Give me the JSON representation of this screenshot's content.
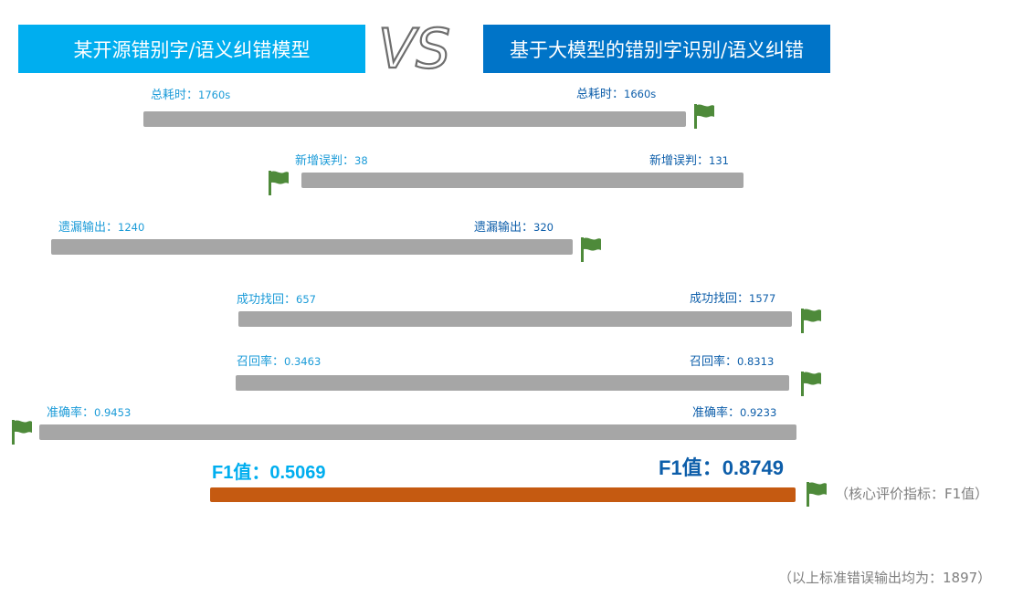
{
  "header": {
    "left_title": "某开源错别字/语义纠错模型",
    "vs_text": "VS",
    "right_title": "基于大模型的错别字识别/语义纠错"
  },
  "colors": {
    "left_header": "#00AEEF",
    "right_header": "#0074C8",
    "bar": "#A6A6A6",
    "key_bar": "#C55A11",
    "flag": "#4E8A3A"
  },
  "icons": {
    "marker": "green-flag-icon"
  },
  "chart_data": {
    "type": "bar",
    "series": [
      {
        "name": "某开源错别字/语义纠错模型"
      },
      {
        "name": "基于大模型的错别字识别/语义纠错"
      }
    ],
    "metrics": [
      {
        "label_a": "总耗时：",
        "value_a": "1760s",
        "label_b": "总耗时：",
        "value_b": "1660s",
        "key": false
      },
      {
        "label_a": "新增误判：",
        "value_a": "38",
        "label_b": "新增误判：",
        "value_b": "131",
        "key": false
      },
      {
        "label_a": "遗漏输出：",
        "value_a": "1240",
        "label_b": "遗漏输出：",
        "value_b": "320",
        "key": false
      },
      {
        "label_a": "成功找回：",
        "value_a": "657",
        "label_b": "成功找回：",
        "value_b": "1577",
        "key": false
      },
      {
        "label_a": "召回率：",
        "value_a": "0.3463",
        "label_b": "召回率：",
        "value_b": "0.8313",
        "key": false
      },
      {
        "label_a": "准确率：",
        "value_a": "0.9453",
        "label_b": "准确率：",
        "value_b": "0.9233",
        "key": false
      },
      {
        "label_a": "F1值：",
        "value_a": "0.5069",
        "label_b": "F1值：",
        "value_b": "0.8749",
        "key": true
      }
    ]
  },
  "notes": {
    "key_metric": "（核心评价指标：F1值）",
    "baseline": "（以上标准错误输出均为：1897）"
  }
}
